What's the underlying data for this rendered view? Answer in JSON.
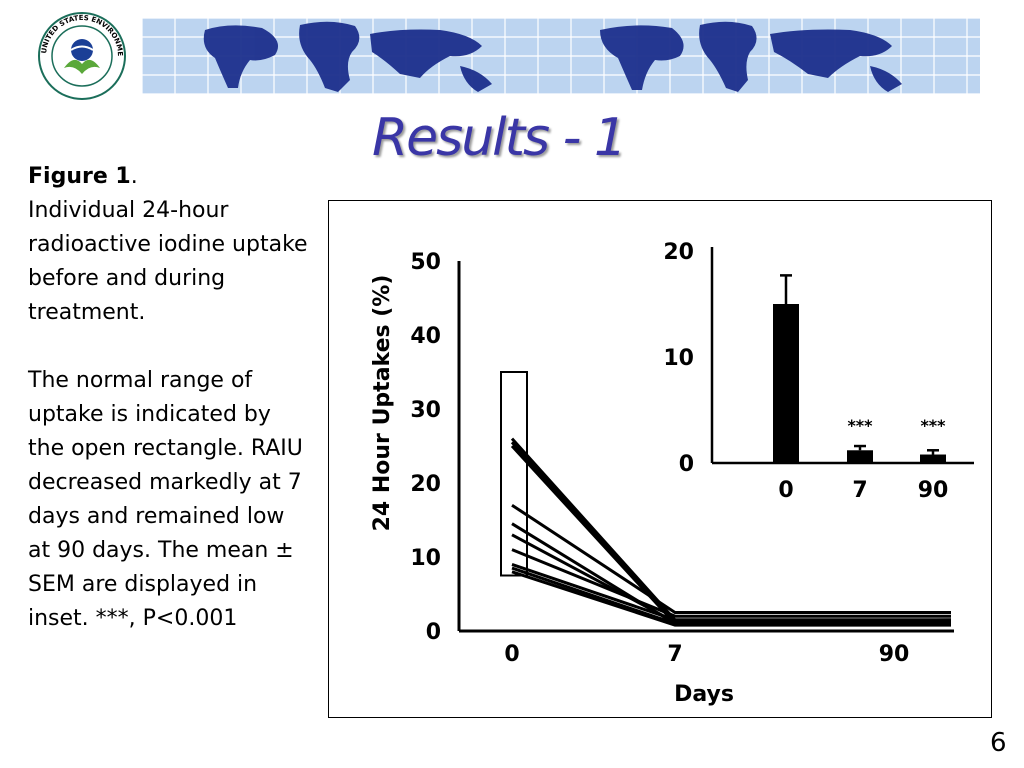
{
  "header": {
    "logo": {
      "icon": "epa-seal-icon",
      "text": "UNITED STATES ENVIRONMENTAL PROTECTION AGENCY"
    },
    "banner_icon": "world-map-grid-icon",
    "colors": {
      "banner_blue": "#bcd4f0",
      "map_blue": "#1c2f8c",
      "title_blue": "#3a36a6"
    }
  },
  "slide": {
    "title": "Results - 1",
    "page_number": "6"
  },
  "caption": {
    "figure_label": "Figure 1",
    "figure_period": ".",
    "line_1": "Individual 24-hour radioactive iodine uptake before and during treatment.",
    "line_2": "The normal range of uptake is indicated by the open rectangle. RAIU decreased markedly at 7 days and remained low at 90 days. The mean ± SEM are displayed in inset. ***, P<0.001"
  },
  "chart_data": [
    {
      "type": "line",
      "xlabel": "Days",
      "ylabel": "24 Hour Uptakes (%)",
      "x_categories": [
        "0",
        "7",
        "90"
      ],
      "y_ticks": [
        "0",
        "10",
        "20",
        "30",
        "40",
        "50"
      ],
      "ylim": [
        0,
        50
      ],
      "normal_range": {
        "low": 7.5,
        "high": 35
      },
      "series": [
        {
          "values": [
            26,
            1.5,
            1.5
          ]
        },
        {
          "values": [
            25.5,
            1.2,
            1.5
          ]
        },
        {
          "values": [
            25,
            1.0,
            1.0
          ]
        },
        {
          "values": [
            17,
            2.5,
            2.5
          ]
        },
        {
          "values": [
            14.5,
            1.0,
            1.0
          ]
        },
        {
          "values": [
            13,
            1.2,
            1.2
          ]
        },
        {
          "values": [
            11,
            2.0,
            2.0
          ]
        },
        {
          "values": [
            9,
            1.5,
            1.5
          ]
        },
        {
          "values": [
            8.5,
            1.0,
            1.0
          ]
        },
        {
          "values": [
            8,
            0.8,
            0.8
          ]
        }
      ]
    },
    {
      "type": "bar",
      "categories": [
        "0",
        "7",
        "90"
      ],
      "values": [
        15,
        1.2,
        0.8
      ],
      "errors": [
        2.7,
        0.4,
        0.4
      ],
      "significance": [
        "",
        "***",
        "***"
      ],
      "y_ticks": [
        "0",
        "10",
        "20"
      ],
      "ylim": [
        0,
        20
      ]
    }
  ]
}
